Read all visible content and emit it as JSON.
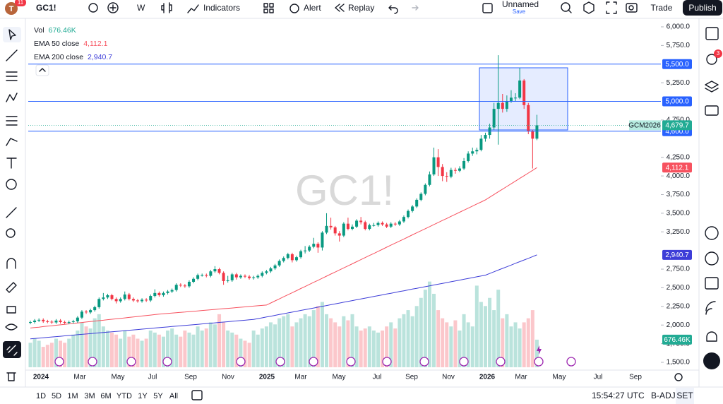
{
  "toolbar": {
    "avatar": "T",
    "badge": "11",
    "symbol": "GC1!",
    "interval": "W",
    "indicators": "Indicators",
    "alert": "Alert",
    "replay": "Replay",
    "layout_name": "Unnamed",
    "save": "Save",
    "trade": "Trade",
    "publish": "Publish"
  },
  "sidebar_badge": "3",
  "chart_data": {
    "type": "candlestick",
    "watermark": "GC1!",
    "up_color": "#089981",
    "down_color": "#f23645",
    "open": [
      2030,
      2040,
      2060,
      2070,
      2050,
      2045,
      2035,
      2060,
      2040,
      2030,
      2040,
      2050,
      2100,
      2180,
      2170,
      2200,
      2240,
      2350,
      2370,
      2400,
      2350,
      2320,
      2350,
      2410,
      2350,
      2330,
      2320,
      2340,
      2330,
      2390,
      2430,
      2400,
      2430,
      2450,
      2470,
      2540,
      2530,
      2520,
      2580,
      2620,
      2670,
      2670,
      2660,
      2720,
      2750,
      2700,
      2590,
      2600,
      2680,
      2640,
      2660,
      2650,
      2630,
      2640,
      2660,
      2700,
      2720,
      2760,
      2800,
      2860,
      2900,
      2950,
      2870,
      2910,
      2990,
      3000,
      3050,
      3090,
      3040,
      3240,
      3330,
      3310,
      3230,
      3200,
      3360,
      3290,
      3320,
      3400,
      3380,
      3290,
      3340,
      3340,
      3370,
      3350,
      3320,
      3360,
      3350,
      3390,
      3450,
      3530,
      3590,
      3680,
      3760,
      3880,
      4020,
      4250,
      4120,
      4000,
      3990,
      4080,
      4070,
      4100,
      4200,
      4300,
      4330,
      4350,
      4500,
      4550,
      4650,
      4900,
      4980,
      4900,
      5000,
      5050,
      5050,
      5280,
      4950,
      4600,
      4500
    ],
    "high": [
      2060,
      2080,
      2090,
      2090,
      2070,
      2065,
      2080,
      2080,
      2060,
      2060,
      2070,
      2120,
      2200,
      2200,
      2220,
      2260,
      2370,
      2430,
      2420,
      2420,
      2370,
      2370,
      2450,
      2430,
      2370,
      2350,
      2360,
      2360,
      2410,
      2480,
      2450,
      2450,
      2470,
      2490,
      2560,
      2560,
      2550,
      2600,
      2640,
      2690,
      2690,
      2690,
      2740,
      2790,
      2770,
      2720,
      2660,
      2700,
      2700,
      2680,
      2680,
      2670,
      2660,
      2680,
      2720,
      2740,
      2780,
      2820,
      2880,
      2920,
      2970,
      2970,
      2930,
      3010,
      3060,
      3070,
      3170,
      3110,
      3260,
      3500,
      3440,
      3330,
      3260,
      3380,
      3440,
      3350,
      3420,
      3450,
      3400,
      3360,
      3370,
      3390,
      3390,
      3370,
      3380,
      3380,
      3410,
      3470,
      3550,
      3610,
      3700,
      3780,
      3900,
      4060,
      4380,
      4360,
      4160,
      4050,
      4110,
      4110,
      4130,
      4240,
      4330,
      4380,
      4380,
      4550,
      4580,
      4700,
      4980,
      5620,
      5100,
      5080,
      5150,
      5110,
      5450,
      5300,
      4980,
      4620,
      4820
    ],
    "low": [
      2010,
      2020,
      2040,
      2030,
      2025,
      2015,
      2015,
      2020,
      2010,
      2010,
      2020,
      2030,
      2080,
      2150,
      2150,
      2180,
      2220,
      2330,
      2350,
      2330,
      2290,
      2300,
      2330,
      2330,
      2310,
      2300,
      2300,
      2310,
      2310,
      2370,
      2380,
      2380,
      2410,
      2430,
      2450,
      2510,
      2500,
      2500,
      2560,
      2600,
      2650,
      2640,
      2640,
      2700,
      2680,
      2540,
      2570,
      2580,
      2610,
      2620,
      2630,
      2610,
      2610,
      2620,
      2640,
      2680,
      2700,
      2740,
      2780,
      2840,
      2880,
      2840,
      2850,
      2890,
      2960,
      2980,
      3030,
      2970,
      3000,
      3220,
      3280,
      3200,
      3120,
      3180,
      3270,
      3270,
      3300,
      3350,
      3270,
      3270,
      3320,
      3320,
      3330,
      3300,
      3300,
      3330,
      3330,
      3370,
      3430,
      3510,
      3570,
      3660,
      3740,
      3860,
      4000,
      4000,
      3930,
      3920,
      3970,
      4030,
      4050,
      4080,
      4180,
      4270,
      4290,
      4330,
      4460,
      4500,
      4620,
      4420,
      4850,
      4860,
      4980,
      5000,
      5030,
      4900,
      4560,
      4100,
      4480
    ],
    "close": [
      2040,
      2060,
      2070,
      2050,
      2045,
      2035,
      2060,
      2040,
      2030,
      2040,
      2050,
      2100,
      2180,
      2170,
      2200,
      2240,
      2350,
      2370,
      2400,
      2350,
      2320,
      2350,
      2410,
      2350,
      2330,
      2320,
      2340,
      2330,
      2390,
      2430,
      2400,
      2430,
      2450,
      2470,
      2540,
      2530,
      2520,
      2580,
      2620,
      2670,
      2670,
      2660,
      2720,
      2750,
      2700,
      2590,
      2600,
      2680,
      2640,
      2660,
      2650,
      2630,
      2640,
      2660,
      2700,
      2720,
      2760,
      2800,
      2860,
      2900,
      2950,
      2870,
      2910,
      2990,
      3000,
      3050,
      3090,
      3040,
      3240,
      3330,
      3310,
      3230,
      3200,
      3360,
      3290,
      3320,
      3400,
      3380,
      3290,
      3340,
      3340,
      3370,
      3350,
      3320,
      3360,
      3350,
      3390,
      3450,
      3530,
      3590,
      3680,
      3760,
      3880,
      4020,
      4250,
      4120,
      4000,
      3990,
      4080,
      4070,
      4100,
      4200,
      4300,
      4330,
      4350,
      4500,
      4550,
      4650,
      4900,
      4980,
      4900,
      5000,
      5050,
      5050,
      5280,
      4950,
      4600,
      4500,
      4679.7
    ],
    "volume": {
      "name": "Vol",
      "last_label": "676.46K",
      "color": "#22ab94",
      "values": [
        600,
        700,
        650,
        500,
        550,
        600,
        700,
        650,
        600,
        700,
        800,
        900,
        1100,
        1000,
        950,
        1200,
        1300,
        1000,
        900,
        850,
        800,
        700,
        900,
        750,
        800,
        700,
        650,
        700,
        900,
        850,
        800,
        750,
        900,
        950,
        800,
        750,
        900,
        850,
        800,
        1000,
        900,
        950,
        1100,
        1050,
        1300,
        1100,
        900,
        850,
        800,
        700,
        650,
        600,
        900,
        800,
        950,
        1000,
        1100,
        1050,
        1200,
        1250,
        1300,
        1000,
        1100,
        1200,
        1300,
        1250,
        1400,
        1500,
        1600,
        1300,
        1200,
        1100,
        1000,
        1250,
        1150,
        1300,
        1000,
        900,
        950,
        1000,
        900,
        850,
        900,
        1000,
        1100,
        950,
        1200,
        1300,
        1400,
        1250,
        1500,
        1700,
        1900,
        2100,
        1800,
        1400,
        1200,
        1100,
        1000,
        1150,
        900,
        1300,
        1100,
        1000,
        2000,
        1600,
        1500,
        1700,
        1400,
        1900,
        1200,
        1300,
        1000,
        1100,
        950,
        1100,
        1200,
        1400,
        676.46
      ]
    },
    "series": [
      {
        "name": "EMA 50 close",
        "last_label": "4,112.1",
        "color": "#f7525f",
        "values": [
          1960,
          1966,
          1972,
          1979,
          1985,
          1991,
          1997,
          2003,
          2010,
          2016,
          2022,
          2028,
          2034,
          2041,
          2047,
          2053,
          2059,
          2065,
          2072,
          2078,
          2084,
          2090,
          2096,
          2103,
          2109,
          2115,
          2121,
          2127,
          2134,
          2140,
          2146,
          2151,
          2156,
          2161,
          2166,
          2171,
          2175,
          2180,
          2185,
          2190,
          2195,
          2200,
          2205,
          2210,
          2215,
          2220,
          2224,
          2229,
          2234,
          2239,
          2244,
          2249,
          2254,
          2259,
          2264,
          2268,
          2296,
          2324,
          2351,
          2379,
          2407,
          2434,
          2462,
          2490,
          2517,
          2545,
          2573,
          2600,
          2628,
          2656,
          2684,
          2711,
          2739,
          2767,
          2794,
          2822,
          2850,
          2877,
          2905,
          2933,
          2960,
          2988,
          3016,
          3044,
          3072,
          3099,
          3127,
          3154,
          3182,
          3210,
          3237,
          3265,
          3292,
          3320,
          3348,
          3375,
          3403,
          3430,
          3458,
          3486,
          3513,
          3541,
          3568,
          3596,
          3624,
          3651,
          3679,
          3715,
          3751,
          3787,
          3823,
          3859,
          3895,
          3931,
          3967,
          4003,
          4039,
          4075,
          4112.1
        ]
      },
      {
        "name": "EMA 200 close",
        "last_label": "2,940.7",
        "color": "#3d3dd8",
        "values": [
          1815,
          1820,
          1825,
          1830,
          1835,
          1840,
          1845,
          1850,
          1855,
          1860,
          1865,
          1870,
          1875,
          1880,
          1885,
          1890,
          1895,
          1900,
          1905,
          1910,
          1915,
          1920,
          1925,
          1930,
          1935,
          1940,
          1945,
          1950,
          1955,
          1960,
          1965,
          1970,
          1975,
          1980,
          1985,
          1990,
          1995,
          2000,
          2005,
          2010,
          2015,
          2020,
          2025,
          2030,
          2035,
          2040,
          2045,
          2050,
          2055,
          2060,
          2065,
          2070,
          2075,
          2086,
          2097,
          2108,
          2119,
          2130,
          2141,
          2152,
          2163,
          2174,
          2185,
          2196,
          2207,
          2218,
          2229,
          2240,
          2251,
          2262,
          2273,
          2284,
          2295,
          2306,
          2317,
          2328,
          2339,
          2350,
          2361,
          2372,
          2383,
          2394,
          2405,
          2416,
          2427,
          2438,
          2449,
          2460,
          2471,
          2482,
          2493,
          2504,
          2515,
          2526,
          2537,
          2548,
          2559,
          2570,
          2581,
          2592,
          2603,
          2614,
          2625,
          2636,
          2647,
          2658,
          2669,
          2692,
          2715,
          2737,
          2760,
          2782,
          2805,
          2828,
          2850,
          2873,
          2895,
          2918,
          2940.7
        ]
      }
    ],
    "ylim": [
      1500,
      6000
    ],
    "yticks": [
      {
        "value": 6000,
        "label": "6,000.0"
      },
      {
        "value": 5750,
        "label": "5,750.0"
      },
      {
        "value": 5250,
        "label": "5,250.0"
      },
      {
        "value": 4750,
        "label": "4,750.0"
      },
      {
        "value": 4250,
        "label": "4,250.0"
      },
      {
        "value": 4000,
        "label": "4,000.0"
      },
      {
        "value": 3750,
        "label": "3,750.0"
      },
      {
        "value": 3500,
        "label": "3,500.0"
      },
      {
        "value": 3250,
        "label": "3,250.0"
      },
      {
        "value": 2750,
        "label": "2,750.0"
      },
      {
        "value": 2500,
        "label": "2,500.0"
      },
      {
        "value": 2250,
        "label": "2,250.0"
      },
      {
        "value": 2000,
        "label": "2,000.0"
      },
      {
        "value": 1750,
        "label": "1,750.0"
      },
      {
        "value": 1500,
        "label": "1,500.0"
      }
    ],
    "levels": [
      {
        "value": 5500,
        "label": "5,500.0"
      },
      {
        "value": 5000,
        "label": "5,000.0"
      },
      {
        "value": 4600,
        "label": "4,600.0"
      }
    ],
    "last_price": {
      "symbol": "GCM2026",
      "value": 4679.7,
      "label": "4,679.7"
    },
    "time_labels": [
      "2024",
      "Mar",
      "May",
      "Jul",
      "Sep",
      "Nov",
      "2025",
      "Mar",
      "May",
      "Jul",
      "Sep",
      "Nov",
      "2026",
      "Mar",
      "May",
      "Jul",
      "Sep"
    ]
  },
  "bottom_bar": {
    "ranges": [
      "1D",
      "5D",
      "1M",
      "3M",
      "6M",
      "YTD",
      "1Y",
      "5Y",
      "All"
    ],
    "time": "15:54:27 UTC",
    "adjustment": "B-ADJ",
    "session": "SET"
  }
}
